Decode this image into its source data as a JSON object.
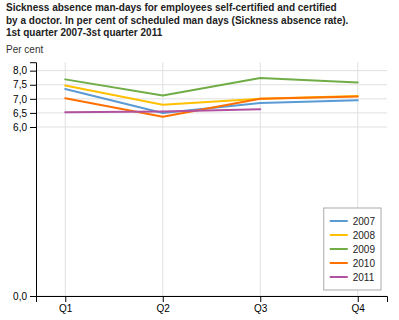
{
  "chart_data": {
    "type": "line",
    "title": "Sickness absence man-days for employees self-certified and certified\nby a doctor. In per cent of scheduled man days (Sickness absence rate).\n1st quarter 2007-3st quarter 2011",
    "ylabel": "Per cent",
    "categories": [
      "Q1",
      "Q2",
      "Q3",
      "Q4"
    ],
    "series": [
      {
        "name": "2007",
        "color": "#5B9BD5",
        "values": [
          7.35,
          6.5,
          6.85,
          6.95
        ]
      },
      {
        "name": "2008",
        "color": "#FFC000",
        "values": [
          7.47,
          6.79,
          7.0,
          7.1
        ]
      },
      {
        "name": "2009",
        "color": "#70AD47",
        "values": [
          7.69,
          7.12,
          7.74,
          7.58
        ]
      },
      {
        "name": "2010",
        "color": "#FF7000",
        "values": [
          7.02,
          6.36,
          7.0,
          7.08
        ]
      },
      {
        "name": "2011",
        "color": "#B052A0",
        "values": [
          6.52,
          6.55,
          6.63,
          null
        ]
      }
    ],
    "ylim": [
      0.0,
      8.3
    ],
    "yticks": [
      {
        "value": 0.0,
        "label": "0,0"
      },
      {
        "value": 6.0,
        "label": "6,0"
      },
      {
        "value": 6.5,
        "label": "6,5"
      },
      {
        "value": 7.0,
        "label": "7,0"
      },
      {
        "value": 7.5,
        "label": "7,5"
      },
      {
        "value": 8.0,
        "label": "8,0"
      }
    ],
    "grid": true,
    "legend": "lower right"
  }
}
